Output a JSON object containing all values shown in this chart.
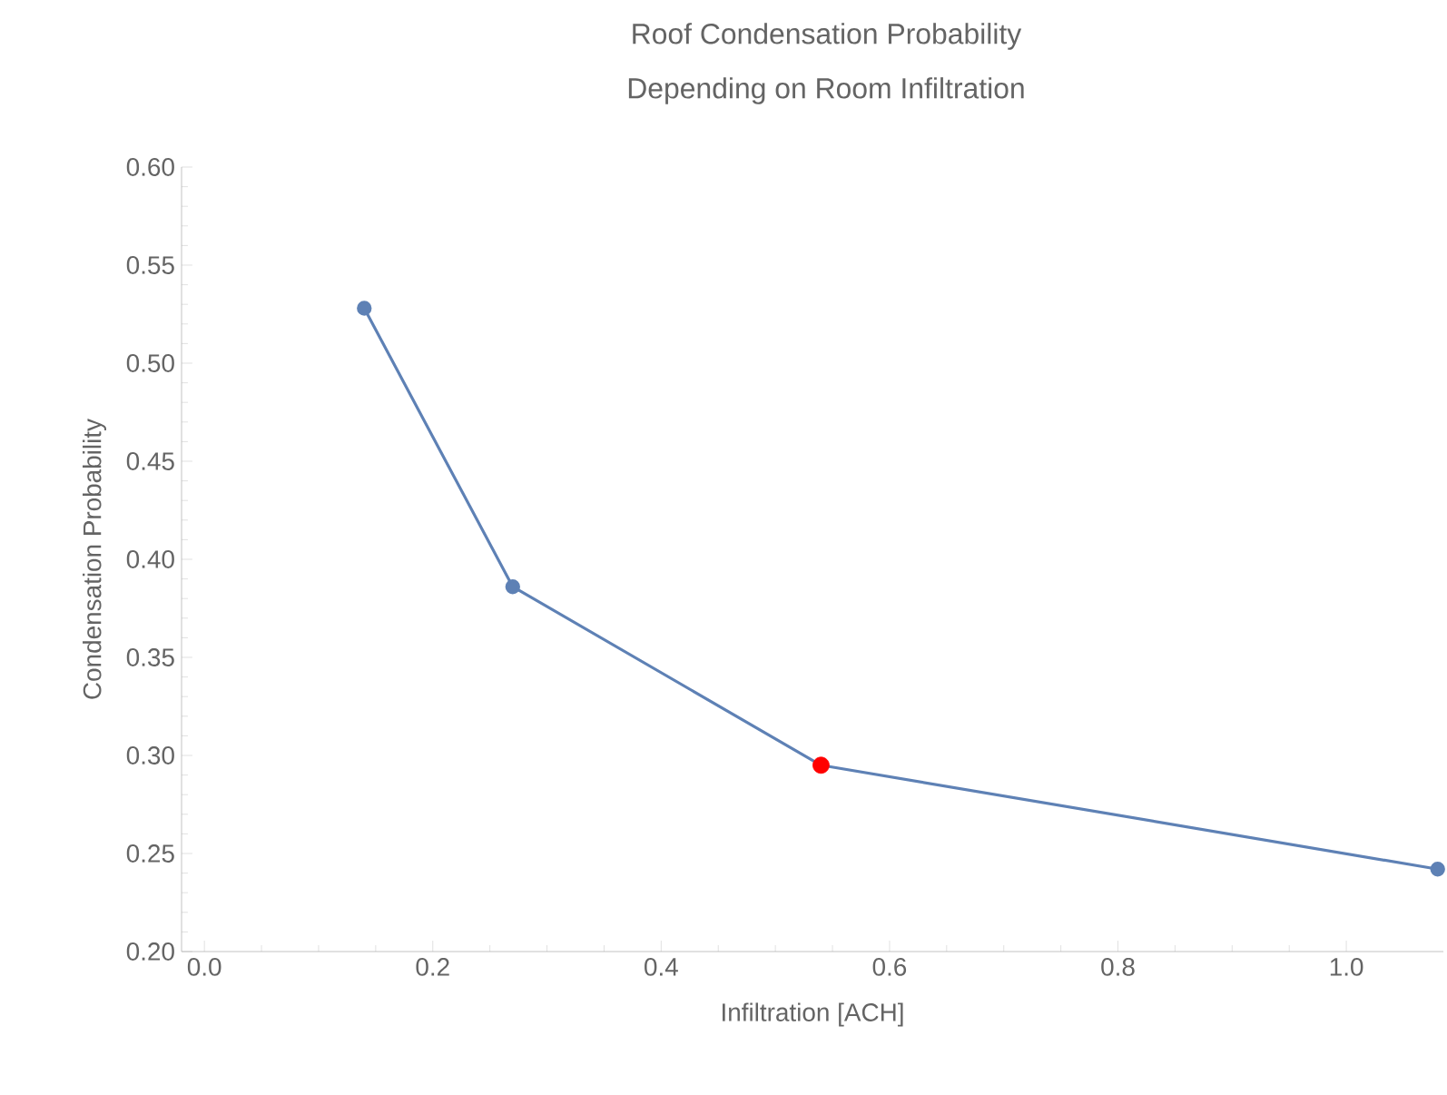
{
  "chart_data": {
    "type": "line",
    "title": "Roof Condensation Probability",
    "subtitle": "Depending on Room Infiltration",
    "xlabel": "Infiltration [ACH]",
    "ylabel": "Condensation Probability",
    "xlim": [
      -0.02,
      1.085
    ],
    "ylim": [
      0.2,
      0.6
    ],
    "xticks": [
      {
        "value": 0.0,
        "label": "0.0"
      },
      0.2,
      0.4,
      0.6,
      0.8,
      {
        "value": 1.0,
        "label": "1.0"
      }
    ],
    "yticks": [
      {
        "value": 0.2,
        "label": "0.20"
      },
      0.25,
      {
        "value": 0.3,
        "label": "0.30"
      },
      0.35,
      {
        "value": 0.4,
        "label": "0.40"
      },
      0.45,
      {
        "value": 0.5,
        "label": "0.50"
      },
      0.55,
      {
        "value": 0.6,
        "label": "0.60"
      }
    ],
    "grid": false,
    "marker": "circle",
    "line_style": "solid",
    "series": [
      {
        "color": "#5e81b5",
        "x": [
          0.14,
          0.27,
          0.54,
          1.08
        ],
        "values": [
          0.528,
          0.386,
          0.295,
          0.242
        ]
      },
      {
        "type": "scatter",
        "color": "#ff0000",
        "x": [
          0.54
        ],
        "values": [
          0.295
        ]
      }
    ]
  }
}
